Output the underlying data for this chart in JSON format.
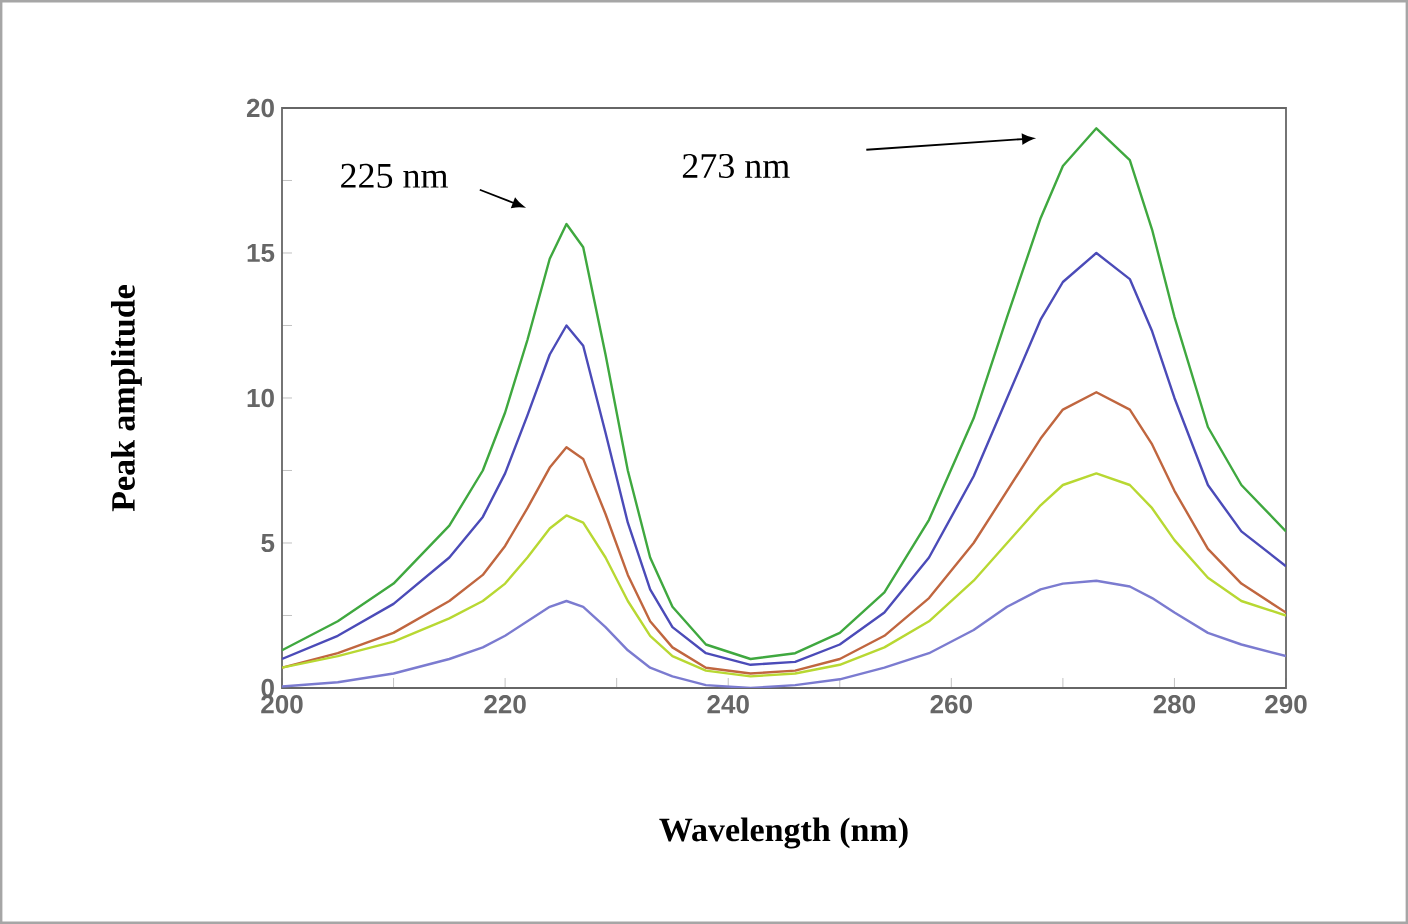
{
  "chart_data": {
    "type": "line",
    "xlabel": "Wavelength (nm)",
    "ylabel": "Peak amplitude",
    "x": [
      200,
      205,
      210,
      215,
      218,
      220,
      222,
      224,
      225.5,
      227,
      229,
      231,
      233,
      235,
      238,
      242,
      246,
      250,
      254,
      258,
      262,
      265,
      268,
      270,
      273,
      276,
      278,
      280,
      283,
      286,
      290
    ],
    "series": [
      {
        "color": "#3fa83f",
        "values": [
          1.3,
          2.3,
          3.6,
          5.6,
          7.5,
          9.5,
          12,
          14.8,
          16.0,
          15.2,
          11.5,
          7.5,
          4.5,
          2.8,
          1.5,
          1.0,
          1.2,
          1.9,
          3.3,
          5.8,
          9.3,
          12.8,
          16.2,
          18.0,
          19.3,
          18.2,
          15.8,
          12.8,
          9.0,
          7.0,
          5.4
        ]
      },
      {
        "color": "#4b4bb8",
        "values": [
          1.0,
          1.8,
          2.9,
          4.5,
          5.9,
          7.4,
          9.4,
          11.5,
          12.5,
          11.8,
          8.8,
          5.7,
          3.4,
          2.1,
          1.2,
          0.8,
          0.9,
          1.5,
          2.6,
          4.5,
          7.3,
          10.0,
          12.7,
          14.0,
          15.0,
          14.1,
          12.3,
          10.0,
          7.0,
          5.4,
          4.2
        ]
      },
      {
        "color": "#c0663f",
        "values": [
          0.7,
          1.2,
          1.9,
          3.0,
          3.9,
          4.9,
          6.2,
          7.6,
          8.3,
          7.9,
          6.0,
          3.9,
          2.3,
          1.4,
          0.7,
          0.5,
          0.6,
          1.0,
          1.8,
          3.1,
          5.0,
          6.8,
          8.6,
          9.6,
          10.2,
          9.6,
          8.4,
          6.8,
          4.8,
          3.6,
          2.6
        ]
      },
      {
        "color": "#b8d832",
        "values": [
          0.7,
          1.1,
          1.6,
          2.4,
          3.0,
          3.6,
          4.5,
          5.5,
          5.95,
          5.7,
          4.5,
          3.0,
          1.8,
          1.1,
          0.6,
          0.4,
          0.5,
          0.8,
          1.4,
          2.3,
          3.7,
          5.0,
          6.3,
          7.0,
          7.4,
          7.0,
          6.2,
          5.1,
          3.8,
          3.0,
          2.5
        ]
      },
      {
        "color": "#7b7bd0",
        "values": [
          0.05,
          0.2,
          0.5,
          1.0,
          1.4,
          1.8,
          2.3,
          2.8,
          3.0,
          2.8,
          2.1,
          1.3,
          0.7,
          0.4,
          0.1,
          0.0,
          0.1,
          0.3,
          0.7,
          1.2,
          2.0,
          2.8,
          3.4,
          3.6,
          3.7,
          3.5,
          3.1,
          2.6,
          1.9,
          1.5,
          1.1
        ]
      }
    ],
    "xlim": [
      200,
      290
    ],
    "ylim": [
      0,
      20
    ],
    "xticks": [
      200,
      {
        "value": 210,
        "label": null
      },
      220,
      {
        "value": 230,
        "label": null
      },
      240,
      {
        "value": 250,
        "label": null
      },
      260,
      {
        "value": 270,
        "label": null
      },
      280,
      290
    ],
    "yticks": [
      0,
      {
        "value": 2.5,
        "label": null
      },
      5,
      {
        "value": 7.5,
        "label": null
      },
      10,
      {
        "value": 12.5,
        "label": null
      },
      15,
      {
        "value": 17.5,
        "label": null
      },
      20
    ],
    "annotations": [
      "225 nm",
      "273 nm"
    ],
    "grid": false
  }
}
